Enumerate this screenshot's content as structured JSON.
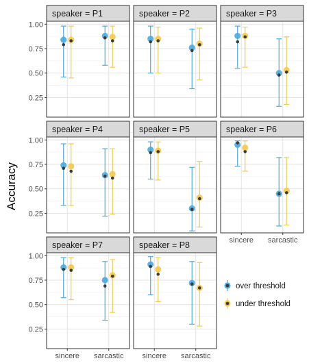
{
  "chart_data": {
    "type": "scatter",
    "subtype": "faceted point-range",
    "facet_variable": "speaker",
    "facet_label_format": "speaker = {}",
    "facet_layout": {
      "columns": 3,
      "rows": 3
    },
    "categories": [
      "sincere",
      "sarcastic"
    ],
    "ylabel": "Accuracy",
    "xlabel": "",
    "ylim": [
      0.05,
      1.03
    ],
    "yticks": [
      0.25,
      0.5,
      0.75,
      1.0
    ],
    "ytick_labels": [
      "0.25",
      "0.50",
      "0.75",
      "1.00"
    ],
    "grid": true,
    "legend": {
      "position": "right",
      "entries": [
        {
          "label": "over threshold",
          "color": "#4FA9DC"
        },
        {
          "label": "under threshold",
          "color": "#F3C94F"
        }
      ]
    },
    "series": [
      {
        "name": "over threshold",
        "color": "#4FA9DC"
      },
      {
        "name": "under threshold",
        "color": "#F3C94F"
      }
    ],
    "panels": [
      {
        "speaker": "P1",
        "over": [
          {
            "mean": 0.84,
            "median": 0.79,
            "lo": 0.46,
            "hi": 0.98
          },
          {
            "mean": 0.88,
            "median": 0.86,
            "lo": 0.58,
            "hi": 0.98
          }
        ],
        "under": [
          {
            "mean": 0.84,
            "median": 0.83,
            "lo": 0.45,
            "hi": 0.98
          },
          {
            "mean": 0.87,
            "median": 0.83,
            "lo": 0.56,
            "hi": 0.98
          }
        ]
      },
      {
        "speaker": "P2",
        "over": [
          {
            "mean": 0.85,
            "median": 0.82,
            "lo": 0.5,
            "hi": 0.98
          },
          {
            "mean": 0.76,
            "median": 0.73,
            "lo": 0.34,
            "hi": 0.95
          }
        ],
        "under": [
          {
            "mean": 0.85,
            "median": 0.83,
            "lo": 0.5,
            "hi": 0.97
          },
          {
            "mean": 0.8,
            "median": 0.79,
            "lo": 0.43,
            "hi": 0.96
          }
        ]
      },
      {
        "speaker": "P3",
        "over": [
          {
            "mean": 0.88,
            "median": 0.82,
            "lo": 0.55,
            "hi": 0.98
          },
          {
            "mean": 0.5,
            "median": 0.48,
            "lo": 0.16,
            "hi": 0.85
          }
        ],
        "under": [
          {
            "mean": 0.88,
            "median": 0.87,
            "lo": 0.56,
            "hi": 0.97
          },
          {
            "mean": 0.53,
            "median": 0.51,
            "lo": 0.18,
            "hi": 0.87
          }
        ]
      },
      {
        "speaker": "P4",
        "over": [
          {
            "mean": 0.74,
            "median": 0.71,
            "lo": 0.33,
            "hi": 0.96
          },
          {
            "mean": 0.64,
            "median": 0.63,
            "lo": 0.22,
            "hi": 0.91
          }
        ],
        "under": [
          {
            "mean": 0.73,
            "median": 0.68,
            "lo": 0.33,
            "hi": 0.96
          },
          {
            "mean": 0.65,
            "median": 0.61,
            "lo": 0.24,
            "hi": 0.91
          }
        ]
      },
      {
        "speaker": "P5",
        "over": [
          {
            "mean": 0.9,
            "median": 0.87,
            "lo": 0.6,
            "hi": 0.98
          },
          {
            "mean": 0.3,
            "median": 0.29,
            "lo": 0.07,
            "hi": 0.72
          }
        ],
        "under": [
          {
            "mean": 0.89,
            "median": 0.88,
            "lo": 0.59,
            "hi": 0.98
          },
          {
            "mean": 0.41,
            "median": 0.4,
            "lo": 0.11,
            "hi": 0.78
          }
        ]
      },
      {
        "speaker": "P6",
        "over": [
          {
            "mean": 0.95,
            "median": 0.97,
            "lo": 0.73,
            "hi": 0.99
          },
          {
            "mean": 0.45,
            "median": 0.45,
            "lo": 0.12,
            "hi": 0.82
          }
        ],
        "under": [
          {
            "mean": 0.92,
            "median": 0.88,
            "lo": 0.68,
            "hi": 0.99
          },
          {
            "mean": 0.48,
            "median": 0.46,
            "lo": 0.13,
            "hi": 0.82
          }
        ]
      },
      {
        "speaker": "P7",
        "over": [
          {
            "mean": 0.88,
            "median": 0.86,
            "lo": 0.57,
            "hi": 0.98
          },
          {
            "mean": 0.75,
            "median": 0.69,
            "lo": 0.34,
            "hi": 0.94
          }
        ],
        "under": [
          {
            "mean": 0.88,
            "median": 0.85,
            "lo": 0.55,
            "hi": 0.98
          },
          {
            "mean": 0.8,
            "median": 0.79,
            "lo": 0.42,
            "hi": 0.96
          }
        ]
      },
      {
        "speaker": "P8",
        "over": [
          {
            "mean": 0.91,
            "median": 0.89,
            "lo": 0.6,
            "hi": 0.99
          },
          {
            "mean": 0.72,
            "median": 0.71,
            "lo": 0.3,
            "hi": 0.94
          }
        ],
        "under": [
          {
            "mean": 0.86,
            "median": 0.81,
            "lo": 0.53,
            "hi": 0.98
          },
          {
            "mean": 0.67,
            "median": 0.67,
            "lo": 0.28,
            "hi": 0.93
          }
        ]
      }
    ]
  },
  "colors": {
    "over": "#4FA9DC",
    "under": "#F3C94F",
    "median_point": "#3a3a3a",
    "strip_bg": "#D9D9D9",
    "panel_border": "#333333",
    "grid_major": "#E3E3E3",
    "grid_minor": "#F1F1F1"
  }
}
